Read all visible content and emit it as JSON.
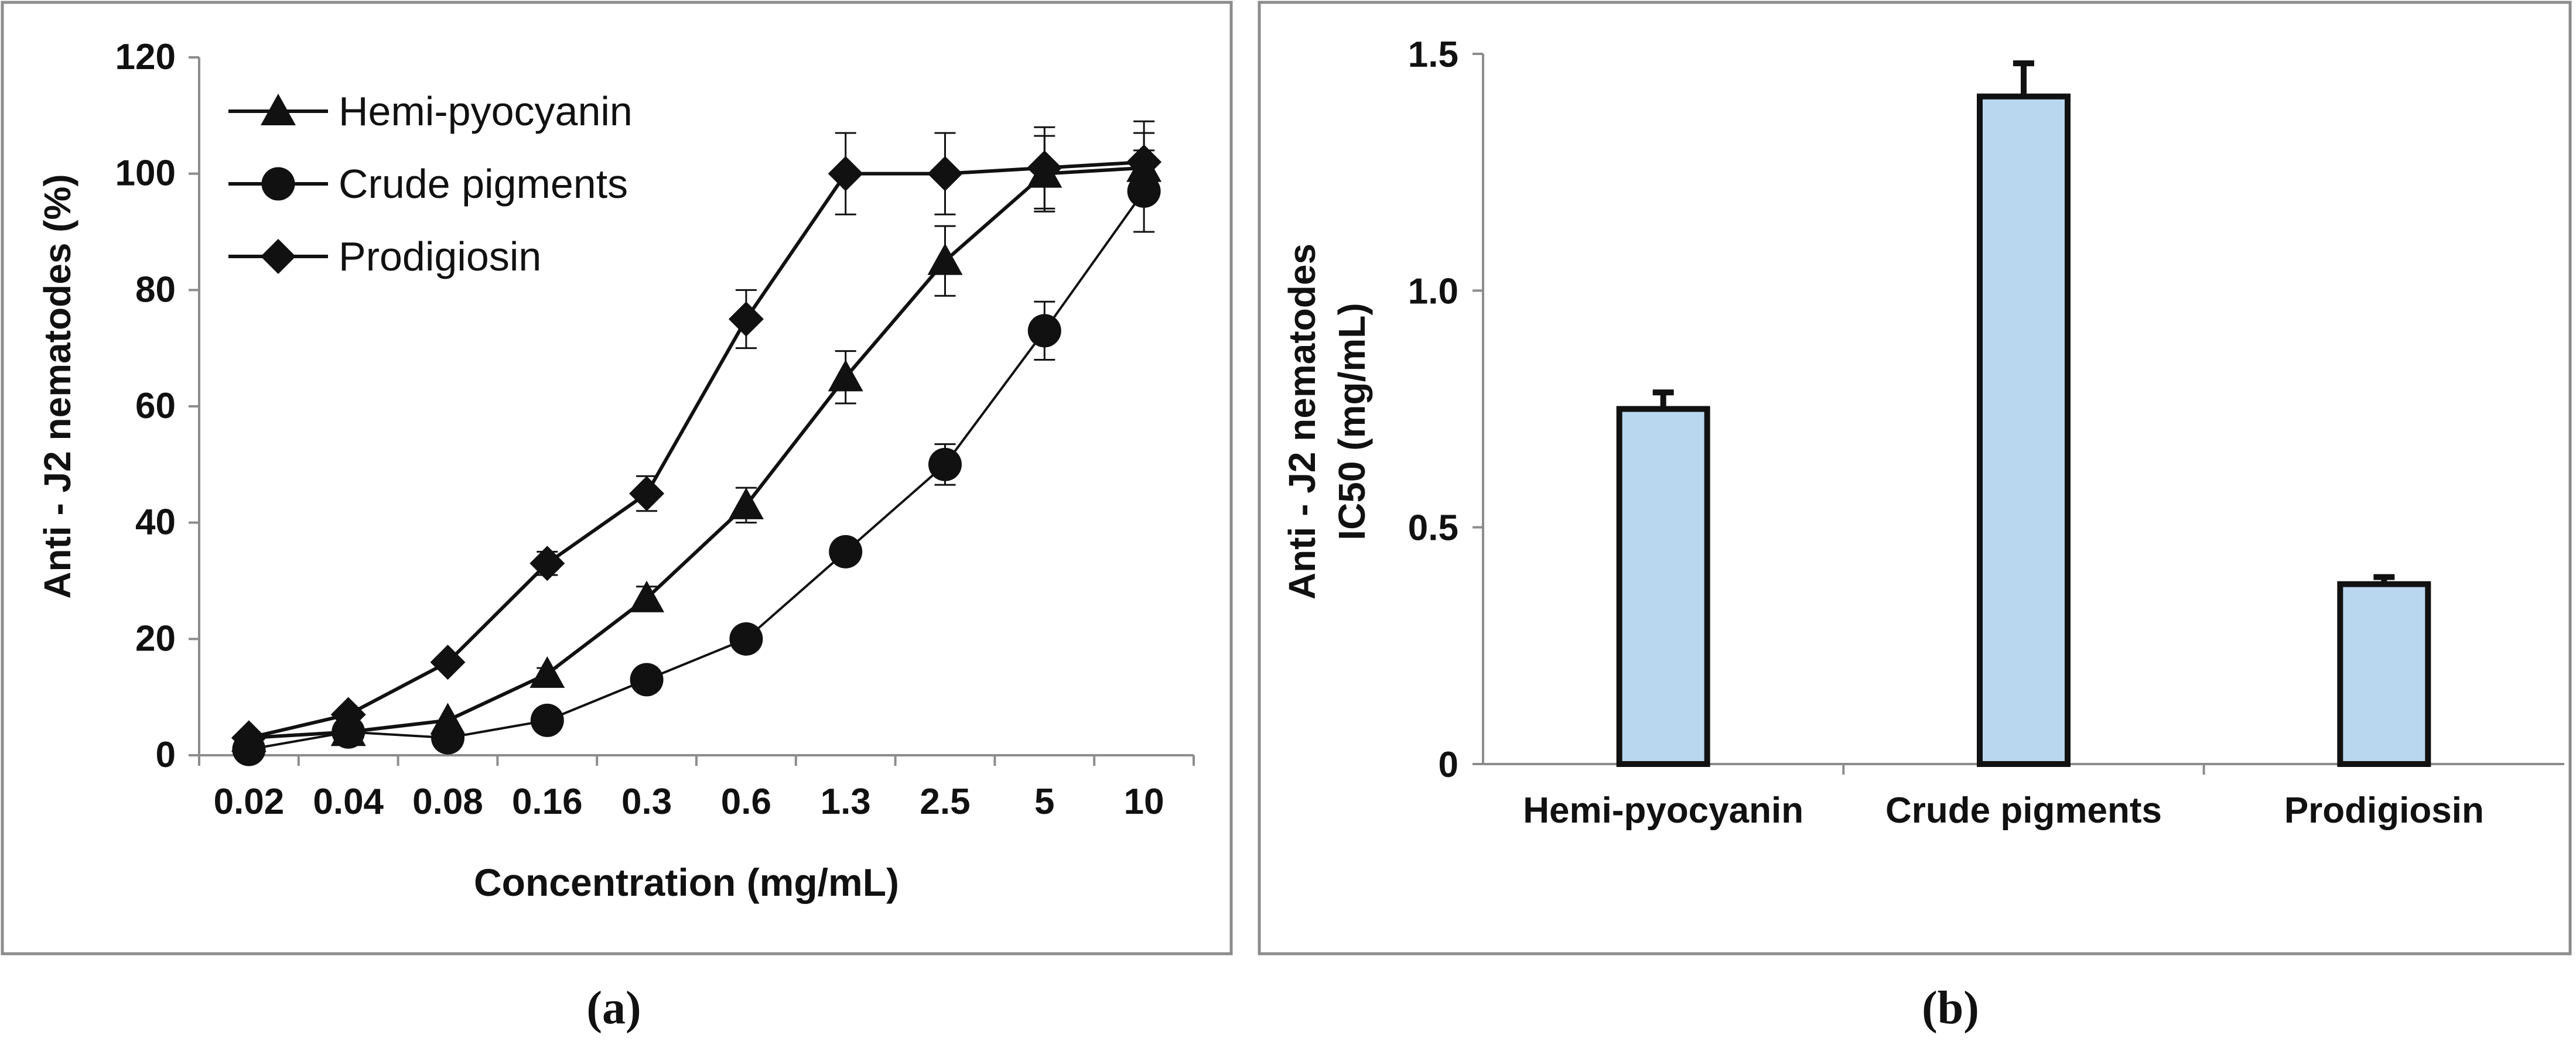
{
  "chart_data": [
    {
      "panel": "a",
      "type": "line",
      "categories": [
        "0.02",
        "0.04",
        "0.08",
        "0.16",
        "0.3",
        "0.6",
        "1.3",
        "2.5",
        "5",
        "10"
      ],
      "xlabel": "Concentration (mg/mL)",
      "ylabel": "Anti - J2 nematodes (%)",
      "ylim": [
        0,
        120
      ],
      "yticks": [
        "0",
        "20",
        "40",
        "60",
        "80",
        "100",
        "120"
      ],
      "legend": "top-left",
      "series": [
        {
          "name": "Hemi-pyocyanin",
          "marker": "triangle",
          "values": [
            3,
            4,
            6,
            14,
            27,
            43,
            65,
            85,
            100,
            101
          ],
          "errors": [
            0,
            0,
            0,
            1,
            2,
            3,
            4.5,
            6,
            6.5,
            6
          ]
        },
        {
          "name": "Crude pigments",
          "marker": "circle",
          "values": [
            1,
            4,
            3,
            6,
            13,
            20,
            35,
            50,
            73,
            97
          ],
          "errors": [
            0,
            0,
            0,
            0,
            0,
            0,
            2,
            3.5,
            5,
            7
          ]
        },
        {
          "name": "Prodigiosin",
          "marker": "diamond",
          "values": [
            3,
            7,
            16,
            33,
            45,
            75,
            100,
            100,
            101,
            102
          ],
          "errors": [
            0,
            0,
            0,
            2,
            3,
            5,
            7,
            7,
            7,
            7
          ]
        }
      ]
    },
    {
      "panel": "b",
      "type": "bar",
      "categories": [
        "Hemi-pyocyanin",
        "Crude pigments",
        "Prodigiosin"
      ],
      "values": [
        0.75,
        1.41,
        0.38
      ],
      "errors": [
        0.035,
        0.07,
        0.015
      ],
      "ylabel_lines": [
        "Anti - J2 nematodes",
        "IC50 (mg/mL)"
      ],
      "ylim": [
        0,
        1.5
      ],
      "yticks": [
        "0",
        "0.5",
        "1.0",
        "1.5"
      ],
      "bar_color": "#b9d7ef"
    }
  ],
  "panel_labels": [
    "(a)",
    "(b)"
  ],
  "colors": {
    "line": "#111111",
    "frame": "#8c8c8c",
    "axis": "#8c8c8c"
  }
}
